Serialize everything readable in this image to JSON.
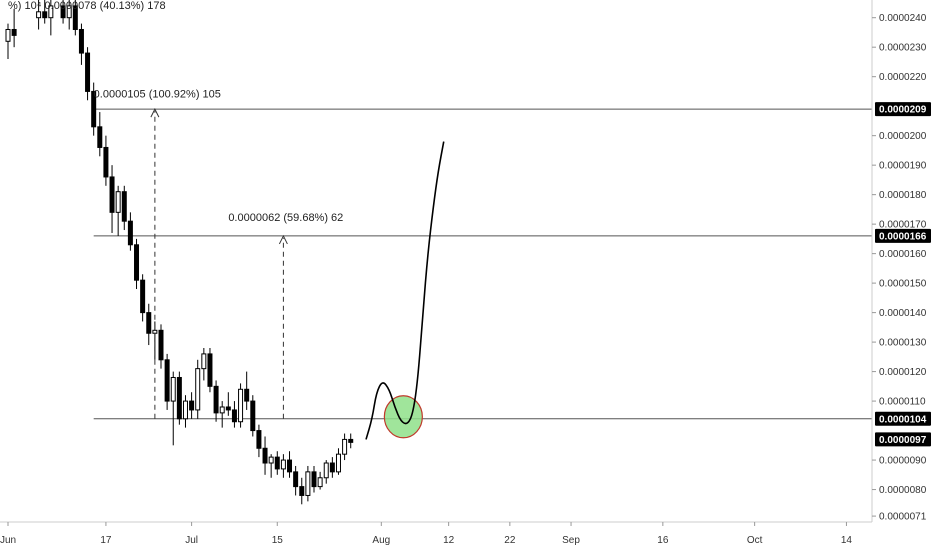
{
  "chart_data": {
    "type": "candlestick",
    "y_axis": {
      "position": "right",
      "range": [
        6.9e-06,
        2.46e-05
      ],
      "ticks": [
        "0.0000240",
        "0.0000230",
        "0.0000220",
        "0.0000200",
        "0.0000190",
        "0.0000180",
        "0.0000170",
        "0.0000160",
        "0.0000150",
        "0.0000140",
        "0.0000130",
        "0.0000120",
        "0.0000110",
        "0.0000090",
        "0.0000080",
        "0.0000071"
      ],
      "tick_values": [
        2.4e-05,
        2.3e-05,
        2.2e-05,
        2e-05,
        1.9e-05,
        1.8e-05,
        1.7e-05,
        1.6e-05,
        1.5e-05,
        1.4e-05,
        1.3e-05,
        1.2e-05,
        1.1e-05,
        9e-06,
        8e-06,
        7.1e-06
      ]
    },
    "x_axis": {
      "labels": [
        "Jun",
        "17",
        "Jul",
        "15",
        "Aug",
        "12",
        "22",
        "Sep",
        "16",
        "Oct",
        "14"
      ],
      "label_days": [
        0,
        16,
        30,
        44,
        61,
        72,
        82,
        92,
        107,
        122,
        137
      ]
    },
    "price_badges": [
      {
        "label": "0.0000209",
        "value": 2.09e-05,
        "color": "#000000"
      },
      {
        "label": "0.0000166",
        "value": 1.66e-05,
        "color": "#000000"
      },
      {
        "label": "0.0000104",
        "value": 1.04e-05,
        "color": "#000000"
      },
      {
        "label": "0.0000097",
        "value": 9.7e-06,
        "color": "#000000"
      }
    ],
    "horizontal_lines": [
      {
        "value": 2.09e-05,
        "x_from_day": 14
      },
      {
        "value": 1.66e-05,
        "x_from_day": 14
      },
      {
        "value": 1.04e-05,
        "x_from_day": 14
      }
    ],
    "measurements": [
      {
        "text": "%) 10⁴  0.0000078 (40.13%) 178",
        "value": 2.43e-05,
        "day": 0
      },
      {
        "text": "0.0000105 (100.92%) 105",
        "value": 2.13e-05,
        "day": 14,
        "arrow_day": 24,
        "arrow_from": 1.04e-05,
        "arrow_to": 2.09e-05
      },
      {
        "text": "0.0000062 (59.68%) 62",
        "value": 1.71e-05,
        "day": 36,
        "arrow_day": 45,
        "arrow_from": 1.04e-05,
        "arrow_to": 1.66e-05
      }
    ],
    "candles": [
      {
        "d": 0,
        "o": 2.32e-05,
        "h": 2.38e-05,
        "l": 2.26e-05,
        "c": 2.36e-05
      },
      {
        "d": 1,
        "o": 2.36e-05,
        "h": 2.43e-05,
        "l": 2.3e-05,
        "c": 2.34e-05
      },
      {
        "d": 5,
        "o": 2.4e-05,
        "h": 2.46e-05,
        "l": 2.36e-05,
        "c": 2.42e-05
      },
      {
        "d": 6,
        "o": 2.42e-05,
        "h": 2.46e-05,
        "l": 2.38e-05,
        "c": 2.4e-05
      },
      {
        "d": 7,
        "o": 2.4e-05,
        "h": 2.46e-05,
        "l": 2.34e-05,
        "c": 2.44e-05
      },
      {
        "d": 9,
        "o": 2.44e-05,
        "h": 2.46e-05,
        "l": 2.38e-05,
        "c": 2.4e-05
      },
      {
        "d": 10,
        "o": 2.4e-05,
        "h": 2.46e-05,
        "l": 2.36e-05,
        "c": 2.44e-05
      },
      {
        "d": 11,
        "o": 2.44e-05,
        "h": 2.46e-05,
        "l": 2.34e-05,
        "c": 2.36e-05
      },
      {
        "d": 12,
        "o": 2.36e-05,
        "h": 2.38e-05,
        "l": 2.24e-05,
        "c": 2.28e-05
      },
      {
        "d": 13,
        "o": 2.28e-05,
        "h": 2.3e-05,
        "l": 2.12e-05,
        "c": 2.15e-05
      },
      {
        "d": 14,
        "o": 2.15e-05,
        "h": 2.18e-05,
        "l": 2e-05,
        "c": 2.03e-05
      },
      {
        "d": 15,
        "o": 2.03e-05,
        "h": 2.08e-05,
        "l": 1.93e-05,
        "c": 1.96e-05
      },
      {
        "d": 16,
        "o": 1.96e-05,
        "h": 2e-05,
        "l": 1.83e-05,
        "c": 1.86e-05
      },
      {
        "d": 17,
        "o": 1.86e-05,
        "h": 1.9e-05,
        "l": 1.67e-05,
        "c": 1.74e-05
      },
      {
        "d": 18,
        "o": 1.74e-05,
        "h": 1.83e-05,
        "l": 1.66e-05,
        "c": 1.81e-05
      },
      {
        "d": 19,
        "o": 1.81e-05,
        "h": 1.83e-05,
        "l": 1.68e-05,
        "c": 1.71e-05
      },
      {
        "d": 20,
        "o": 1.71e-05,
        "h": 1.74e-05,
        "l": 1.61e-05,
        "c": 1.63e-05
      },
      {
        "d": 21,
        "o": 1.63e-05,
        "h": 1.65e-05,
        "l": 1.48e-05,
        "c": 1.51e-05
      },
      {
        "d": 22,
        "o": 1.51e-05,
        "h": 1.53e-05,
        "l": 1.37e-05,
        "c": 1.4e-05
      },
      {
        "d": 23,
        "o": 1.4e-05,
        "h": 1.43e-05,
        "l": 1.29e-05,
        "c": 1.33e-05
      },
      {
        "d": 24,
        "o": 1.33e-05,
        "h": 1.37e-05,
        "l": 1.24e-05,
        "c": 1.34e-05
      },
      {
        "d": 25,
        "o": 1.34e-05,
        "h": 1.36e-05,
        "l": 1.21e-05,
        "c": 1.24e-05
      },
      {
        "d": 26,
        "o": 1.24e-05,
        "h": 1.26e-05,
        "l": 1.07e-05,
        "c": 1.1e-05
      },
      {
        "d": 27,
        "o": 1.1e-05,
        "h": 1.2e-05,
        "l": 9.5e-06,
        "c": 1.18e-05
      },
      {
        "d": 28,
        "o": 1.18e-05,
        "h": 1.2e-05,
        "l": 1.02e-05,
        "c": 1.04e-05
      },
      {
        "d": 29,
        "o": 1.04e-05,
        "h": 1.12e-05,
        "l": 1.01e-05,
        "c": 1.1e-05
      },
      {
        "d": 30,
        "o": 1.1e-05,
        "h": 1.13e-05,
        "l": 1.04e-05,
        "c": 1.07e-05
      },
      {
        "d": 31,
        "o": 1.07e-05,
        "h": 1.24e-05,
        "l": 1.04e-05,
        "c": 1.21e-05
      },
      {
        "d": 32,
        "o": 1.21e-05,
        "h": 1.28e-05,
        "l": 1.17e-05,
        "c": 1.26e-05
      },
      {
        "d": 33,
        "o": 1.26e-05,
        "h": 1.28e-05,
        "l": 1.13e-05,
        "c": 1.15e-05
      },
      {
        "d": 34,
        "o": 1.15e-05,
        "h": 1.17e-05,
        "l": 1.03e-05,
        "c": 1.06e-05
      },
      {
        "d": 35,
        "o": 1.06e-05,
        "h": 1.1e-05,
        "l": 1.01e-05,
        "c": 1.08e-05
      },
      {
        "d": 36,
        "o": 1.08e-05,
        "h": 1.13e-05,
        "l": 1.05e-05,
        "c": 1.07e-05
      },
      {
        "d": 37,
        "o": 1.07e-05,
        "h": 1.1e-05,
        "l": 1.01e-05,
        "c": 1.03e-05
      },
      {
        "d": 38,
        "o": 1.03e-05,
        "h": 1.16e-05,
        "l": 1.01e-05,
        "c": 1.14e-05
      },
      {
        "d": 39,
        "o": 1.14e-05,
        "h": 1.2e-05,
        "l": 1.07e-05,
        "c": 1.1e-05
      },
      {
        "d": 40,
        "o": 1.1e-05,
        "h": 1.12e-05,
        "l": 9.8e-06,
        "c": 1e-05
      },
      {
        "d": 41,
        "o": 1e-05,
        "h": 1.02e-05,
        "l": 9.1e-06,
        "c": 9.4e-06
      },
      {
        "d": 42,
        "o": 9.4e-06,
        "h": 9.8e-06,
        "l": 8.5e-06,
        "c": 8.9e-06
      },
      {
        "d": 43,
        "o": 8.9e-06,
        "h": 9.2e-06,
        "l": 8.4e-06,
        "c": 9.1e-06
      },
      {
        "d": 44,
        "o": 9.1e-06,
        "h": 9.3e-06,
        "l": 8.5e-06,
        "c": 8.7e-06
      },
      {
        "d": 45,
        "o": 8.7e-06,
        "h": 9.2e-06,
        "l": 8.4e-06,
        "c": 9e-06
      },
      {
        "d": 46,
        "o": 9e-06,
        "h": 9.3e-06,
        "l": 8.4e-06,
        "c": 8.6e-06
      },
      {
        "d": 47,
        "o": 8.6e-06,
        "h": 8.8e-06,
        "l": 7.8e-06,
        "c": 8.1e-06
      },
      {
        "d": 48,
        "o": 8.1e-06,
        "h": 8.4e-06,
        "l": 7.5e-06,
        "c": 7.8e-06
      },
      {
        "d": 49,
        "o": 7.8e-06,
        "h": 8.8e-06,
        "l": 7.6e-06,
        "c": 8.6e-06
      },
      {
        "d": 50,
        "o": 8.6e-06,
        "h": 8.8e-06,
        "l": 7.9e-06,
        "c": 8.1e-06
      },
      {
        "d": 51,
        "o": 8.1e-06,
        "h": 8.6e-06,
        "l": 8e-06,
        "c": 8.4e-06
      },
      {
        "d": 52,
        "o": 8.4e-06,
        "h": 9e-06,
        "l": 8.2e-06,
        "c": 8.9e-06
      },
      {
        "d": 53,
        "o": 8.9e-06,
        "h": 9.1e-06,
        "l": 8.4e-06,
        "c": 8.6e-06
      },
      {
        "d": 54,
        "o": 8.6e-06,
        "h": 9.4e-06,
        "l": 8.5e-06,
        "c": 9.2e-06
      },
      {
        "d": 55,
        "o": 9.2e-06,
        "h": 9.9e-06,
        "l": 9e-06,
        "c": 9.7e-06
      },
      {
        "d": 56,
        "o": 9.7e-06,
        "h": 9.9e-06,
        "l": 9.4e-06,
        "c": 9.6e-06
      }
    ],
    "drawn_path": [
      [
        58.5,
        9.7e-06
      ],
      [
        59.5,
        1.04e-05
      ],
      [
        60.2,
        1.13e-05
      ],
      [
        61.2,
        1.17e-05
      ],
      [
        62.3,
        1.14e-05
      ],
      [
        63.2,
        1.08e-05
      ],
      [
        64.2,
        1.03e-05
      ],
      [
        65.3,
        1.02e-05
      ],
      [
        66.2,
        1.06e-05
      ],
      [
        67.0,
        1.18e-05
      ],
      [
        67.8,
        1.4e-05
      ],
      [
        68.6,
        1.6e-05
      ],
      [
        69.5,
        1.76e-05
      ],
      [
        70.3,
        1.88e-05
      ],
      [
        71.2,
        1.98e-05
      ]
    ],
    "highlight_circle": {
      "day": 64.6,
      "value": 1.04e-05,
      "fill": "#8fe08a",
      "stroke": "#c0392b"
    },
    "colors": {
      "candle": "#000000",
      "grid": "#eeeeee",
      "line": "#555555"
    }
  }
}
